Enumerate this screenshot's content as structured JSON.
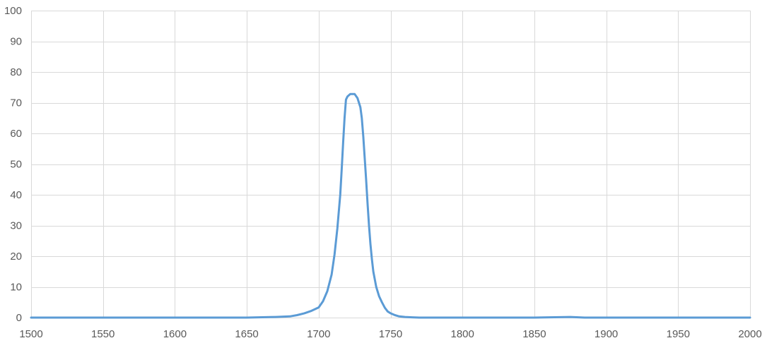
{
  "chart_data": {
    "type": "line",
    "title": "",
    "xlabel": "",
    "ylabel": "",
    "xlim": [
      1500,
      2000
    ],
    "ylim": [
      0,
      100
    ],
    "x_ticks": [
      1500,
      1550,
      1600,
      1650,
      1700,
      1750,
      1800,
      1850,
      1900,
      1950,
      2000
    ],
    "y_ticks": [
      0,
      10,
      20,
      30,
      40,
      50,
      60,
      70,
      80,
      90,
      100
    ],
    "x_tick_labels": [
      "1500",
      "1550",
      "1600",
      "1650",
      "1700",
      "1750",
      "1800",
      "1850",
      "1900",
      "1950",
      "2000"
    ],
    "y_tick_labels": [
      "0",
      "10",
      "20",
      "30",
      "40",
      "50",
      "60",
      "70",
      "80",
      "90",
      "100"
    ],
    "grid": true,
    "legend": "none",
    "colors": {
      "series": "#5b9bd5",
      "grid": "#d9d9d9",
      "text": "#595959"
    },
    "series": [
      {
        "x": [
          1500,
          1550,
          1600,
          1650,
          1670,
          1680,
          1685,
          1690,
          1695,
          1700,
          1703,
          1706,
          1709,
          1711,
          1713,
          1715,
          1716,
          1717,
          1718,
          1719,
          1720,
          1722,
          1725,
          1727,
          1729,
          1730,
          1731,
          1732,
          1733,
          1734,
          1735,
          1736,
          1737,
          1738,
          1740,
          1742,
          1744,
          1746,
          1748,
          1750,
          1753,
          1756,
          1760,
          1765,
          1770,
          1780,
          1800,
          1850,
          1875,
          1885,
          1900,
          1950,
          2000
        ],
        "y": [
          0,
          0,
          0,
          0,
          0.2,
          0.4,
          0.8,
          1.4,
          2.2,
          3.3,
          5.3,
          8.6,
          14,
          20.5,
          29,
          40,
          48,
          57,
          65,
          71,
          72,
          72.8,
          72.8,
          71.5,
          68.5,
          65,
          59,
          52,
          45,
          37,
          30,
          24,
          19,
          15,
          10,
          7,
          5,
          3.2,
          2,
          1.4,
          0.8,
          0.4,
          0.2,
          0.1,
          0,
          0,
          0,
          0,
          0.2,
          0,
          0,
          0,
          0
        ]
      }
    ]
  }
}
